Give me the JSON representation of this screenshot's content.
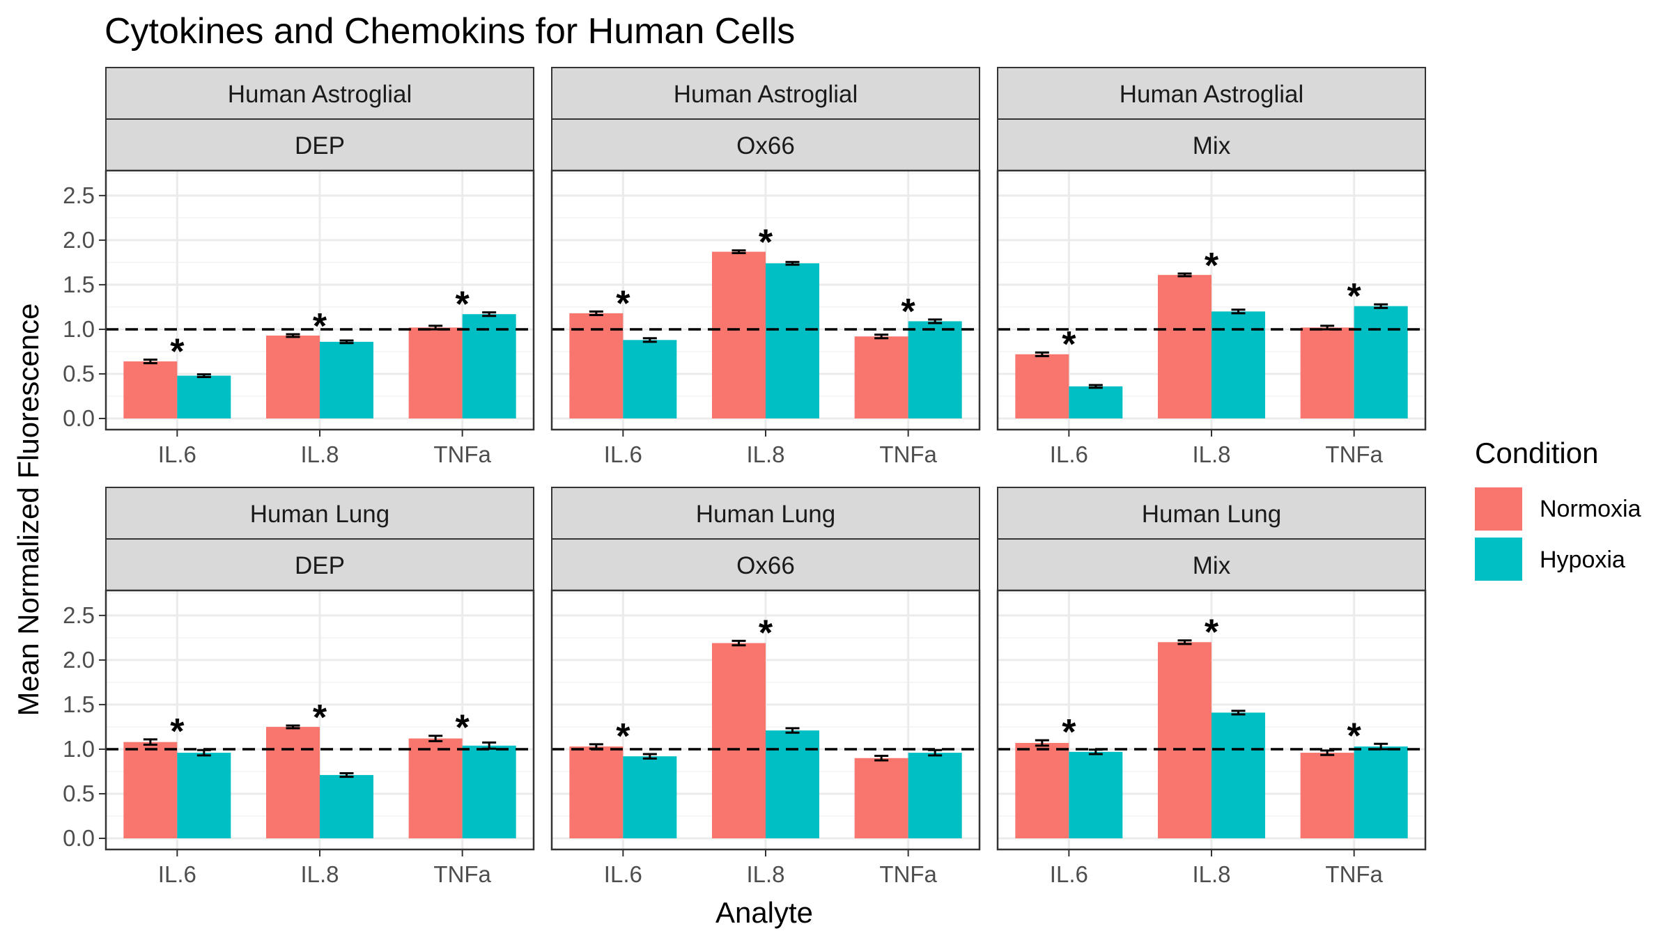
{
  "chart_data": {
    "type": "bar",
    "title": "Cytokines and Chemokins for Human Cells",
    "xlabel": "Analyte",
    "ylabel": "Mean Normalized Fluorescence",
    "categories": [
      "IL.6",
      "IL.8",
      "TNFa"
    ],
    "yticks": [
      "0.0",
      "0.5",
      "1.0",
      "1.5",
      "2.0",
      "2.5"
    ],
    "ylim": [
      0,
      2.5
    ],
    "reference_line": 1.0,
    "significance_marker": "*",
    "legend": {
      "title": "Condition",
      "placement": "right",
      "entries": [
        {
          "name": "Normoxia",
          "color": "#F8766D"
        },
        {
          "name": "Hypoxia",
          "color": "#00BFC4"
        }
      ]
    },
    "panels": [
      {
        "cell": "Human Astroglial",
        "treatment": "DEP",
        "series": [
          {
            "name": "Normoxia",
            "values": [
              0.64,
              0.93,
              1.02
            ],
            "errors": [
              0.02,
              0.015,
              0.02
            ]
          },
          {
            "name": "Hypoxia",
            "values": [
              0.48,
              0.86,
              1.17
            ],
            "errors": [
              0.015,
              0.015,
              0.02
            ]
          }
        ],
        "significant": [
          true,
          true,
          true
        ]
      },
      {
        "cell": "Human Astroglial",
        "treatment": "Ox66",
        "series": [
          {
            "name": "Normoxia",
            "values": [
              1.18,
              1.87,
              0.92
            ],
            "errors": [
              0.02,
              0.015,
              0.02
            ]
          },
          {
            "name": "Hypoxia",
            "values": [
              0.88,
              1.74,
              1.09
            ],
            "errors": [
              0.02,
              0.015,
              0.02
            ]
          }
        ],
        "significant": [
          true,
          true,
          true
        ]
      },
      {
        "cell": "Human Astroglial",
        "treatment": "Mix",
        "series": [
          {
            "name": "Normoxia",
            "values": [
              0.72,
              1.61,
              1.02
            ],
            "errors": [
              0.02,
              0.015,
              0.02
            ]
          },
          {
            "name": "Hypoxia",
            "values": [
              0.36,
              1.2,
              1.26
            ],
            "errors": [
              0.015,
              0.02,
              0.02
            ]
          }
        ],
        "significant": [
          true,
          true,
          true
        ]
      },
      {
        "cell": "Human Lung",
        "treatment": "DEP",
        "series": [
          {
            "name": "Normoxia",
            "values": [
              1.08,
              1.25,
              1.12
            ],
            "errors": [
              0.03,
              0.015,
              0.03
            ]
          },
          {
            "name": "Hypoxia",
            "values": [
              0.96,
              0.71,
              1.04
            ],
            "errors": [
              0.03,
              0.02,
              0.035
            ]
          }
        ],
        "significant": [
          true,
          true,
          true
        ]
      },
      {
        "cell": "Human Lung",
        "treatment": "Ox66",
        "series": [
          {
            "name": "Normoxia",
            "values": [
              1.03,
              2.19,
              0.9
            ],
            "errors": [
              0.025,
              0.025,
              0.025
            ]
          },
          {
            "name": "Hypoxia",
            "values": [
              0.92,
              1.21,
              0.96
            ],
            "errors": [
              0.025,
              0.025,
              0.03
            ]
          }
        ],
        "significant": [
          true,
          true,
          false
        ]
      },
      {
        "cell": "Human Lung",
        "treatment": "Mix",
        "series": [
          {
            "name": "Normoxia",
            "values": [
              1.07,
              2.2,
              0.96
            ],
            "errors": [
              0.03,
              0.02,
              0.025
            ]
          },
          {
            "name": "Hypoxia",
            "values": [
              0.97,
              1.41,
              1.03
            ],
            "errors": [
              0.025,
              0.02,
              0.03
            ]
          }
        ],
        "significant": [
          true,
          true,
          true
        ]
      }
    ]
  }
}
